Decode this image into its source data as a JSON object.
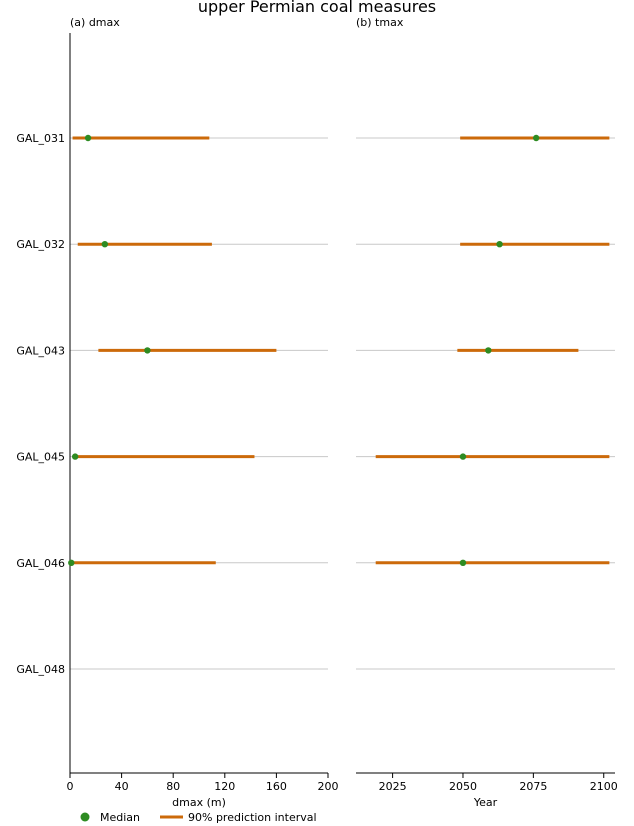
{
  "chart_data": {
    "type": "range-dot",
    "title": "upper Permian coal measures",
    "categories": [
      "GAL_031",
      "GAL_032",
      "GAL_043",
      "GAL_045",
      "GAL_046",
      "GAL_048"
    ],
    "legend": {
      "placement": "bottom",
      "median_label": "Median",
      "interval_label": "90% prediction interval"
    },
    "colors": {
      "median": "#2e8b22",
      "interval": "#cc6a0a",
      "grid": "#c8c8c8"
    },
    "panels": [
      {
        "label": "(a) dmax",
        "xlabel": "dmax (m)",
        "xlim": [
          0,
          200
        ],
        "xticks": [
          0,
          40,
          80,
          120,
          160,
          200
        ],
        "series": [
          {
            "category": "GAL_031",
            "low": 2,
            "high": 108,
            "median": 14
          },
          {
            "category": "GAL_032",
            "low": 6,
            "high": 110,
            "median": 27
          },
          {
            "category": "GAL_043",
            "low": 22,
            "high": 160,
            "median": 60
          },
          {
            "category": "GAL_045",
            "low": 2,
            "high": 143,
            "median": 4
          },
          {
            "category": "GAL_046",
            "low": 2,
            "high": 113,
            "median": 1
          },
          {
            "category": "GAL_048",
            "low": null,
            "high": null,
            "median": null
          }
        ]
      },
      {
        "label": "(b) tmax",
        "xlabel": "Year",
        "xlim": [
          2012,
          2104
        ],
        "xticks": [
          2025,
          2050,
          2075,
          2100
        ],
        "series": [
          {
            "category": "GAL_031",
            "low": 2049,
            "high": 2102,
            "median": 2076
          },
          {
            "category": "GAL_032",
            "low": 2049,
            "high": 2102,
            "median": 2063
          },
          {
            "category": "GAL_043",
            "low": 2048,
            "high": 2091,
            "median": 2059
          },
          {
            "category": "GAL_045",
            "low": 2019,
            "high": 2102,
            "median": 2050
          },
          {
            "category": "GAL_046",
            "low": 2019,
            "high": 2102,
            "median": 2050
          },
          {
            "category": "GAL_048",
            "low": null,
            "high": null,
            "median": null
          }
        ]
      }
    ]
  }
}
